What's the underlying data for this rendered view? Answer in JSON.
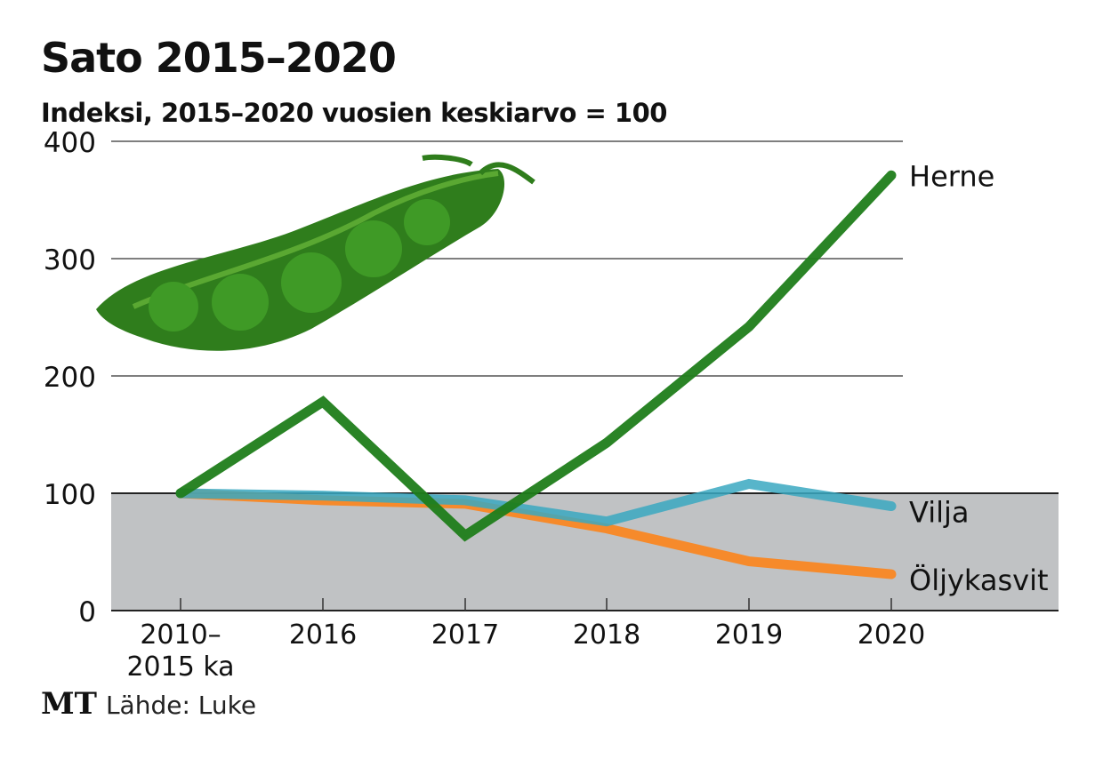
{
  "chart_data": {
    "type": "line",
    "title": "Sato 2015–2020",
    "subtitle": "Indeksi, 2015–2020 vuosien keskiarvo = 100",
    "categories": [
      "2010–\n2015 ka",
      "2016",
      "2017",
      "2018",
      "2019",
      "2020"
    ],
    "ylim": [
      0,
      400
    ],
    "yticks": [
      0,
      100,
      200,
      300,
      400
    ],
    "grid": true,
    "shaded_band": [
      0,
      100
    ],
    "series": [
      {
        "name": "Herne",
        "color": "#1f7d1a",
        "values": [
          100,
          178,
          64,
          143,
          242,
          371
        ]
      },
      {
        "name": "Vilja",
        "color": "#3aa8c1",
        "values": [
          100,
          98,
          94,
          76,
          108,
          89
        ]
      },
      {
        "name": "Öljykasvit",
        "color": "#ff8010",
        "values": [
          100,
          94,
          91,
          70,
          42,
          31
        ]
      }
    ],
    "legend_placement": "line-end labels",
    "illustration": "pea-pod"
  },
  "source": {
    "logo": "MT",
    "text": "Lähde: Luke"
  }
}
